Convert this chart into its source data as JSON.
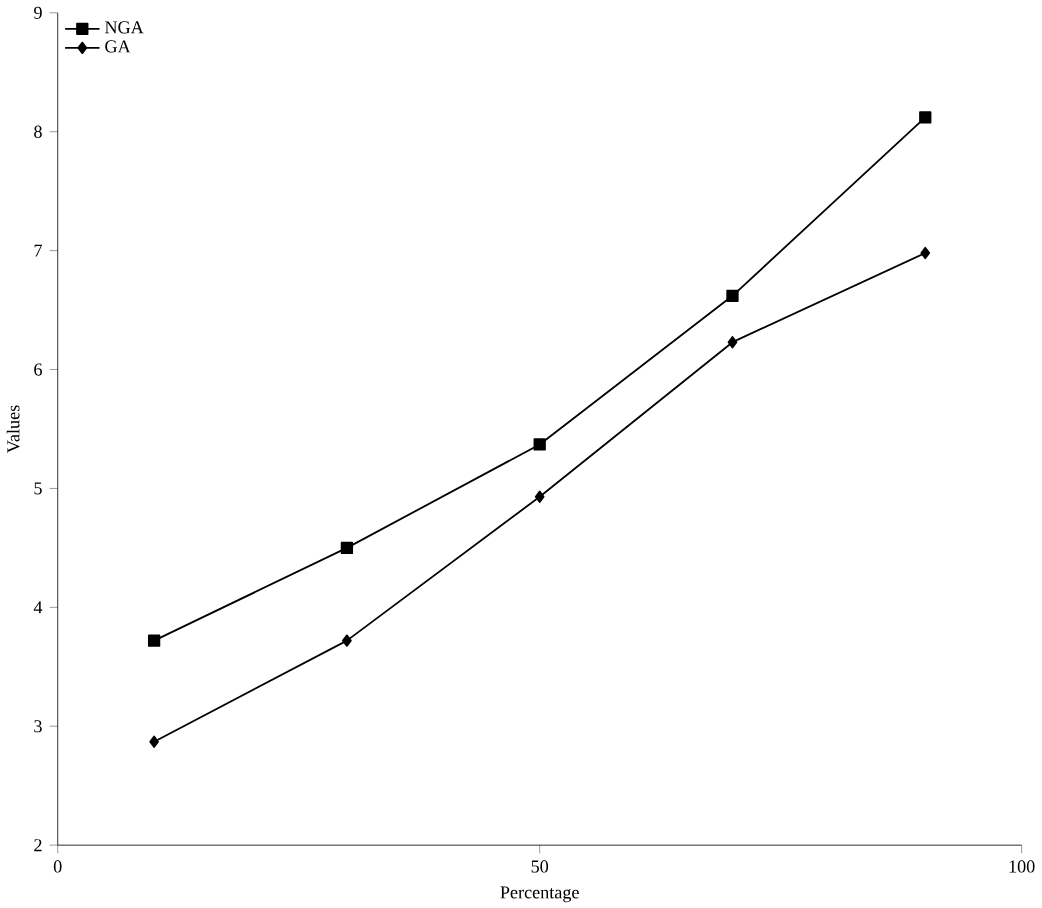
{
  "chart_data": {
    "type": "line",
    "xlabel": "Percentage",
    "ylabel": "Values",
    "x": [
      10,
      30,
      50,
      70,
      90
    ],
    "series": [
      {
        "name": "NGA",
        "color": "#000000",
        "marker": "square",
        "values": [
          3.72,
          4.5,
          5.37,
          6.62,
          8.12
        ]
      },
      {
        "name": "GA",
        "color": "#000000",
        "marker": "diamond",
        "values": [
          2.87,
          3.72,
          4.93,
          6.23,
          6.98
        ]
      }
    ],
    "xlim": [
      0,
      100
    ],
    "xticks": [
      0,
      50,
      100
    ],
    "ylim": [
      2,
      9
    ],
    "yticks": [
      2,
      3,
      4,
      5,
      6,
      7,
      8,
      9
    ],
    "grid": false,
    "legend": "top left",
    "line_style": "solid"
  }
}
